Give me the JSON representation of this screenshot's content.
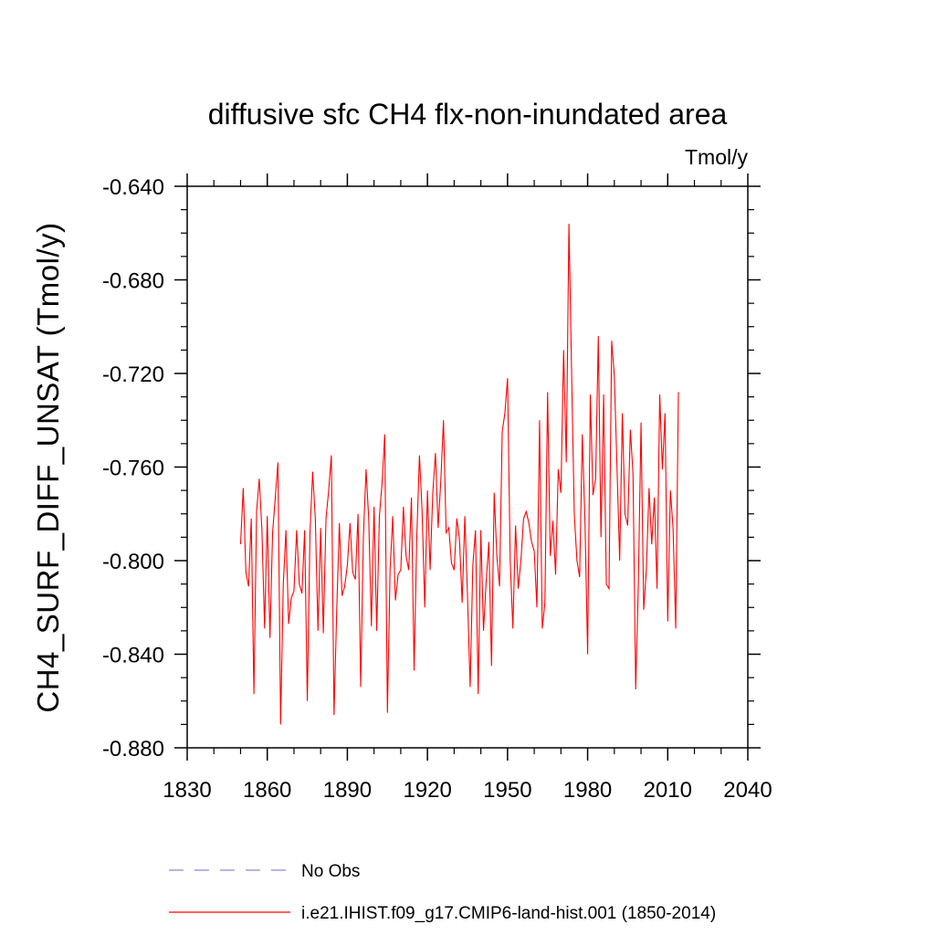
{
  "chart_data": {
    "type": "line",
    "title": "diffusive sfc CH4 flx-non-inundated area",
    "units_label": "Tmol/y",
    "ylabel": "CH4_SURF_DIFF_UNSAT  (Tmol/y)",
    "xlabel": "",
    "xlim": [
      1830,
      2040
    ],
    "ylim": [
      -0.88,
      -0.64
    ],
    "x_ticks": [
      1830,
      1860,
      1890,
      1920,
      1950,
      1980,
      2010,
      2040
    ],
    "x_tick_labels": [
      "1830",
      "1860",
      "1890",
      "1920",
      "1950",
      "1980",
      "2010",
      "2040"
    ],
    "y_ticks": [
      -0.64,
      -0.68,
      -0.72,
      -0.76,
      -0.8,
      -0.84,
      -0.88
    ],
    "y_tick_labels": [
      "-0.640",
      "-0.680",
      "-0.720",
      "-0.760",
      "-0.800",
      "-0.840",
      "-0.880"
    ],
    "grid": false,
    "legend_position": "bottom",
    "series": [
      {
        "name": "No Obs",
        "color": "#8a8ad0",
        "dash": "dashed",
        "x": [],
        "values": []
      },
      {
        "name": "i.e21.IHIST.f09_g17.CMIP6-land-hist.001 (1850-2014)",
        "color": "#ff0000",
        "dash": "solid",
        "x": [
          1850,
          1851,
          1852,
          1853,
          1854,
          1855,
          1856,
          1857,
          1858,
          1859,
          1860,
          1861,
          1862,
          1863,
          1864,
          1865,
          1866,
          1867,
          1868,
          1869,
          1870,
          1871,
          1872,
          1873,
          1874,
          1875,
          1876,
          1877,
          1878,
          1879,
          1880,
          1881,
          1882,
          1883,
          1884,
          1885,
          1886,
          1887,
          1888,
          1889,
          1890,
          1891,
          1892,
          1893,
          1894,
          1895,
          1896,
          1897,
          1898,
          1899,
          1900,
          1901,
          1902,
          1903,
          1904,
          1905,
          1906,
          1907,
          1908,
          1909,
          1910,
          1911,
          1912,
          1913,
          1914,
          1915,
          1916,
          1917,
          1918,
          1919,
          1920,
          1921,
          1922,
          1923,
          1924,
          1925,
          1926,
          1927,
          1928,
          1929,
          1930,
          1931,
          1932,
          1933,
          1934,
          1935,
          1936,
          1937,
          1938,
          1939,
          1940,
          1941,
          1942,
          1943,
          1944,
          1945,
          1946,
          1947,
          1948,
          1949,
          1950,
          1951,
          1952,
          1953,
          1954,
          1955,
          1956,
          1957,
          1958,
          1959,
          1960,
          1961,
          1962,
          1963,
          1964,
          1965,
          1966,
          1967,
          1968,
          1969,
          1970,
          1971,
          1972,
          1973,
          1974,
          1975,
          1976,
          1977,
          1978,
          1979,
          1980,
          1981,
          1982,
          1983,
          1984,
          1985,
          1986,
          1987,
          1988,
          1989,
          1990,
          1991,
          1992,
          1993,
          1994,
          1995,
          1996,
          1997,
          1998,
          1999,
          2000,
          2001,
          2002,
          2003,
          2004,
          2005,
          2006,
          2007,
          2008,
          2009,
          2010,
          2011,
          2012,
          2013,
          2014
        ],
        "values": [
          -0.793,
          -0.769,
          -0.805,
          -0.811,
          -0.782,
          -0.857,
          -0.779,
          -0.765,
          -0.787,
          -0.829,
          -0.781,
          -0.833,
          -0.788,
          -0.773,
          -0.758,
          -0.87,
          -0.81,
          -0.787,
          -0.827,
          -0.816,
          -0.813,
          -0.787,
          -0.81,
          -0.814,
          -0.787,
          -0.86,
          -0.788,
          -0.762,
          -0.782,
          -0.83,
          -0.786,
          -0.831,
          -0.782,
          -0.77,
          -0.755,
          -0.866,
          -0.822,
          -0.784,
          -0.815,
          -0.811,
          -0.802,
          -0.784,
          -0.805,
          -0.808,
          -0.78,
          -0.854,
          -0.79,
          -0.761,
          -0.782,
          -0.828,
          -0.777,
          -0.83,
          -0.781,
          -0.767,
          -0.746,
          -0.865,
          -0.804,
          -0.781,
          -0.817,
          -0.806,
          -0.804,
          -0.777,
          -0.798,
          -0.804,
          -0.773,
          -0.847,
          -0.79,
          -0.755,
          -0.779,
          -0.82,
          -0.77,
          -0.804,
          -0.771,
          -0.754,
          -0.786,
          -0.766,
          -0.74,
          -0.788,
          -0.786,
          -0.801,
          -0.804,
          -0.782,
          -0.791,
          -0.818,
          -0.781,
          -0.815,
          -0.854,
          -0.802,
          -0.787,
          -0.857,
          -0.787,
          -0.83,
          -0.809,
          -0.792,
          -0.845,
          -0.771,
          -0.798,
          -0.811,
          -0.745,
          -0.737,
          -0.722,
          -0.8,
          -0.829,
          -0.785,
          -0.812,
          -0.8,
          -0.782,
          -0.779,
          -0.784,
          -0.792,
          -0.796,
          -0.82,
          -0.74,
          -0.829,
          -0.818,
          -0.728,
          -0.798,
          -0.783,
          -0.806,
          -0.761,
          -0.771,
          -0.71,
          -0.758,
          -0.656,
          -0.72,
          -0.78,
          -0.8,
          -0.807,
          -0.746,
          -0.783,
          -0.84,
          -0.729,
          -0.772,
          -0.765,
          -0.704,
          -0.79,
          -0.729,
          -0.81,
          -0.812,
          -0.706,
          -0.721,
          -0.76,
          -0.8,
          -0.737,
          -0.78,
          -0.785,
          -0.744,
          -0.763,
          -0.855,
          -0.81,
          -0.741,
          -0.821,
          -0.804,
          -0.769,
          -0.793,
          -0.773,
          -0.812,
          -0.729,
          -0.761,
          -0.737,
          -0.826,
          -0.77,
          -0.786,
          -0.829,
          -0.728
        ]
      }
    ]
  }
}
